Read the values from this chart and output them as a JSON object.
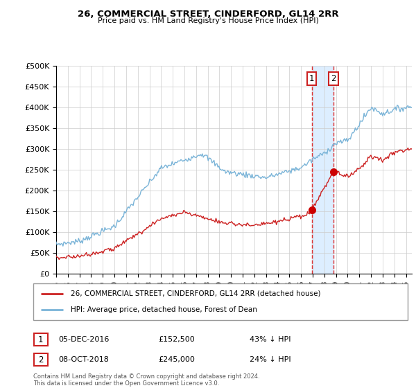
{
  "title": "26, COMMERCIAL STREET, CINDERFORD, GL14 2RR",
  "subtitle": "Price paid vs. HM Land Registry's House Price Index (HPI)",
  "ylabel_ticks": [
    "£0",
    "£50K",
    "£100K",
    "£150K",
    "£200K",
    "£250K",
    "£300K",
    "£350K",
    "£400K",
    "£450K",
    "£500K"
  ],
  "ytick_values": [
    0,
    50000,
    100000,
    150000,
    200000,
    250000,
    300000,
    350000,
    400000,
    450000,
    500000
  ],
  "ylim": [
    0,
    500000
  ],
  "xlim_start": 1995.0,
  "xlim_end": 2025.5,
  "hpi_color": "#7ab4d8",
  "price_color": "#cc2222",
  "sale1_date": 2016.92,
  "sale1_price": 152500,
  "sale2_date": 2018.77,
  "sale2_price": 245000,
  "vline_color": "#dd3333",
  "vline2_color": "#dd3333",
  "span_color": "#ddeeff",
  "sale_marker_color": "#cc0000",
  "legend_label_price": "26, COMMERCIAL STREET, CINDERFORD, GL14 2RR (detached house)",
  "legend_label_hpi": "HPI: Average price, detached house, Forest of Dean",
  "table_row1": [
    "1",
    "05-DEC-2016",
    "£152,500",
    "43% ↓ HPI"
  ],
  "table_row2": [
    "2",
    "08-OCT-2018",
    "£245,000",
    "24% ↓ HPI"
  ],
  "footer": "Contains HM Land Registry data © Crown copyright and database right 2024.\nThis data is licensed under the Open Government Licence v3.0.",
  "background_color": "#ffffff",
  "grid_color": "#cccccc",
  "box_border_color": "#cc2222",
  "xtick_years": [
    1995,
    1996,
    1997,
    1998,
    1999,
    2000,
    2001,
    2002,
    2003,
    2004,
    2005,
    2006,
    2007,
    2008,
    2009,
    2010,
    2011,
    2012,
    2013,
    2014,
    2015,
    2016,
    2017,
    2018,
    2019,
    2020,
    2021,
    2022,
    2023,
    2024,
    2025
  ]
}
